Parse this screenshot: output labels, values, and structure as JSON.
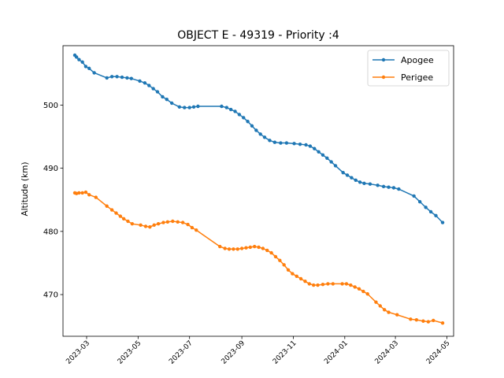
{
  "chart_data": {
    "type": "line",
    "title": "OBJECT E - 49319 - Priority :4",
    "xlabel": "",
    "ylabel": "Altitude (km)",
    "x_axis": "date",
    "xlim": [
      "2023-02-01",
      "2024-05-09"
    ],
    "ylim": [
      463.4,
      509.4
    ],
    "xticks": [
      "2023-03",
      "2023-05",
      "2023-07",
      "2023-09",
      "2023-11",
      "2024-01",
      "2024-03",
      "2024-05"
    ],
    "yticks": [
      470,
      480,
      490,
      500
    ],
    "grid": false,
    "legend": "top-right",
    "series": [
      {
        "name": "Apogee",
        "color": "#1f77b4",
        "points": [
          [
            "2023-02-15",
            507.9
          ],
          [
            "2023-02-17",
            507.6
          ],
          [
            "2023-02-20",
            507.2
          ],
          [
            "2023-02-24",
            506.8
          ],
          [
            "2023-02-28",
            506.1
          ],
          [
            "2023-03-04",
            505.8
          ],
          [
            "2023-03-10",
            505.1
          ],
          [
            "2023-03-25",
            504.3
          ],
          [
            "2023-03-31",
            504.5
          ],
          [
            "2023-04-06",
            504.5
          ],
          [
            "2023-04-12",
            504.4
          ],
          [
            "2023-04-18",
            504.3
          ],
          [
            "2023-04-23",
            504.2
          ],
          [
            "2023-05-03",
            503.8
          ],
          [
            "2023-05-09",
            503.5
          ],
          [
            "2023-05-14",
            503.1
          ],
          [
            "2023-05-19",
            502.6
          ],
          [
            "2023-05-24",
            502.1
          ],
          [
            "2023-05-30",
            501.3
          ],
          [
            "2023-06-04",
            500.9
          ],
          [
            "2023-06-10",
            500.3
          ],
          [
            "2023-06-19",
            499.7
          ],
          [
            "2023-06-25",
            499.6
          ],
          [
            "2023-07-01",
            499.6
          ],
          [
            "2023-07-06",
            499.7
          ],
          [
            "2023-07-11",
            499.8
          ],
          [
            "2023-08-08",
            499.8
          ],
          [
            "2023-08-14",
            499.6
          ],
          [
            "2023-08-19",
            499.3
          ],
          [
            "2023-08-24",
            499.0
          ],
          [
            "2023-08-29",
            498.5
          ],
          [
            "2023-09-03",
            498.0
          ],
          [
            "2023-09-08",
            497.4
          ],
          [
            "2023-09-13",
            496.7
          ],
          [
            "2023-09-18",
            496.0
          ],
          [
            "2023-09-23",
            495.4
          ],
          [
            "2023-09-28",
            494.9
          ],
          [
            "2023-10-04",
            494.4
          ],
          [
            "2023-10-10",
            494.1
          ],
          [
            "2023-10-17",
            494.0
          ],
          [
            "2023-10-24",
            494.0
          ],
          [
            "2023-11-02",
            493.9
          ],
          [
            "2023-11-09",
            493.8
          ],
          [
            "2023-11-16",
            493.7
          ],
          [
            "2023-11-21",
            493.5
          ],
          [
            "2023-11-26",
            493.1
          ],
          [
            "2023-12-01",
            492.6
          ],
          [
            "2023-12-06",
            492.1
          ],
          [
            "2023-12-11",
            491.6
          ],
          [
            "2023-12-16",
            491.0
          ],
          [
            "2023-12-21",
            490.4
          ],
          [
            "2023-12-30",
            489.3
          ],
          [
            "2024-01-04",
            488.9
          ],
          [
            "2024-01-09",
            488.5
          ],
          [
            "2024-01-14",
            488.1
          ],
          [
            "2024-01-19",
            487.8
          ],
          [
            "2024-01-24",
            487.6
          ],
          [
            "2024-01-31",
            487.5
          ],
          [
            "2024-02-09",
            487.3
          ],
          [
            "2024-02-16",
            487.1
          ],
          [
            "2024-02-22",
            487.0
          ],
          [
            "2024-02-28",
            486.9
          ],
          [
            "2024-03-05",
            486.7
          ],
          [
            "2024-03-23",
            485.6
          ],
          [
            "2024-03-30",
            484.7
          ],
          [
            "2024-04-06",
            483.8
          ],
          [
            "2024-04-12",
            483.1
          ],
          [
            "2024-04-18",
            482.5
          ],
          [
            "2024-04-26",
            481.4
          ]
        ]
      },
      {
        "name": "Perigee",
        "color": "#ff7f0e",
        "points": [
          [
            "2023-02-15",
            486.1
          ],
          [
            "2023-02-17",
            486.0
          ],
          [
            "2023-02-20",
            486.1
          ],
          [
            "2023-02-24",
            486.1
          ],
          [
            "2023-02-28",
            486.2
          ],
          [
            "2023-03-04",
            485.8
          ],
          [
            "2023-03-12",
            485.4
          ],
          [
            "2023-03-25",
            484.0
          ],
          [
            "2023-03-31",
            483.4
          ],
          [
            "2023-04-05",
            482.9
          ],
          [
            "2023-04-10",
            482.4
          ],
          [
            "2023-04-14",
            482.0
          ],
          [
            "2023-04-19",
            481.6
          ],
          [
            "2023-04-24",
            481.2
          ],
          [
            "2023-05-04",
            481.0
          ],
          [
            "2023-05-10",
            480.8
          ],
          [
            "2023-05-15",
            480.7
          ],
          [
            "2023-05-20",
            481.0
          ],
          [
            "2023-05-25",
            481.2
          ],
          [
            "2023-05-31",
            481.4
          ],
          [
            "2023-06-05",
            481.5
          ],
          [
            "2023-06-11",
            481.6
          ],
          [
            "2023-06-17",
            481.5
          ],
          [
            "2023-06-23",
            481.4
          ],
          [
            "2023-06-29",
            481.1
          ],
          [
            "2023-07-04",
            480.6
          ],
          [
            "2023-07-09",
            480.2
          ],
          [
            "2023-08-06",
            477.6
          ],
          [
            "2023-08-12",
            477.3
          ],
          [
            "2023-08-17",
            477.2
          ],
          [
            "2023-08-22",
            477.2
          ],
          [
            "2023-08-27",
            477.2
          ],
          [
            "2023-09-01",
            477.3
          ],
          [
            "2023-09-06",
            477.4
          ],
          [
            "2023-09-11",
            477.5
          ],
          [
            "2023-09-16",
            477.6
          ],
          [
            "2023-09-21",
            477.5
          ],
          [
            "2023-09-26",
            477.3
          ],
          [
            "2023-10-01",
            477.0
          ],
          [
            "2023-10-06",
            476.6
          ],
          [
            "2023-10-11",
            476.0
          ],
          [
            "2023-10-16",
            475.4
          ],
          [
            "2023-10-21",
            474.7
          ],
          [
            "2023-10-26",
            473.9
          ],
          [
            "2023-10-31",
            473.3
          ],
          [
            "2023-11-05",
            472.9
          ],
          [
            "2023-11-10",
            472.5
          ],
          [
            "2023-11-15",
            472.1
          ],
          [
            "2023-11-20",
            471.7
          ],
          [
            "2023-11-25",
            471.5
          ],
          [
            "2023-11-30",
            471.5
          ],
          [
            "2023-12-06",
            471.6
          ],
          [
            "2023-12-12",
            471.7
          ],
          [
            "2023-12-18",
            471.7
          ],
          [
            "2023-12-29",
            471.7
          ],
          [
            "2024-01-03",
            471.7
          ],
          [
            "2024-01-08",
            471.5
          ],
          [
            "2024-01-13",
            471.2
          ],
          [
            "2024-01-18",
            470.9
          ],
          [
            "2024-01-23",
            470.5
          ],
          [
            "2024-01-28",
            470.1
          ],
          [
            "2024-02-07",
            468.8
          ],
          [
            "2024-02-12",
            468.2
          ],
          [
            "2024-02-17",
            467.6
          ],
          [
            "2024-02-22",
            467.2
          ],
          [
            "2024-03-03",
            466.8
          ],
          [
            "2024-03-19",
            466.1
          ],
          [
            "2024-03-26",
            466.0
          ],
          [
            "2024-04-03",
            465.8
          ],
          [
            "2024-04-09",
            465.7
          ],
          [
            "2024-04-15",
            465.9
          ],
          [
            "2024-04-26",
            465.5
          ]
        ]
      }
    ]
  }
}
